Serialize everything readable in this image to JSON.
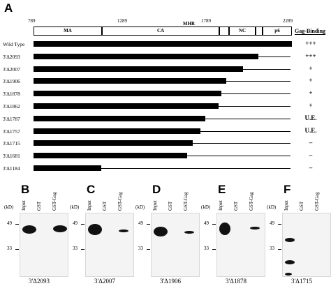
{
  "panelA": {
    "letter": "A",
    "positions": [
      "789",
      "1289",
      "MHR",
      "1789",
      "2289"
    ],
    "domains": [
      "MA",
      "CA",
      "NC",
      "p6"
    ],
    "gag_binding_header": "Gag-Binding",
    "rows": [
      {
        "label": "Wild Type",
        "binding": "+++",
        "end": 2289
      },
      {
        "label": "3'Δ2093",
        "binding": "+++",
        "end": 2093
      },
      {
        "label": "3'Δ2007",
        "binding": "+",
        "end": 2007
      },
      {
        "label": "3'Δ1906",
        "binding": "+",
        "end": 1906
      },
      {
        "label": "3'Δ1878",
        "binding": "+",
        "end": 1878
      },
      {
        "label": "3'Δ1862",
        "binding": "+",
        "end": 1862
      },
      {
        "label": "3'Δ1787",
        "binding": "U.E.",
        "end": 1787
      },
      {
        "label": "3'Δ1757",
        "binding": "U.E.",
        "end": 1757
      },
      {
        "label": "3'Δ1715",
        "binding": "–",
        "end": 1715
      },
      {
        "label": "3'Δ1681",
        "binding": "–",
        "end": 1681
      },
      {
        "label": "3'Δ1184",
        "binding": "–",
        "end": 1184
      }
    ]
  },
  "blots": [
    {
      "letter": "B",
      "caption": "3'Δ2093",
      "lanes": [
        "Input",
        "GST",
        "GST-Gag"
      ],
      "kd": "(kD)",
      "mw": [
        "49",
        "33"
      ]
    },
    {
      "letter": "C",
      "caption": "3'Δ2007",
      "lanes": [
        "Input",
        "GST",
        "GST-Gag"
      ],
      "kd": "(kD)",
      "mw": [
        "49",
        "33"
      ]
    },
    {
      "letter": "D",
      "caption": "3'Δ1906",
      "lanes": [
        "Input",
        "GST",
        "GST-Gag"
      ],
      "kd": "(kD)",
      "mw": [
        "49",
        "33"
      ]
    },
    {
      "letter": "E",
      "caption": "3'Δ1878",
      "lanes": [
        "Input",
        "GST",
        "GST-Gag"
      ],
      "kd": "(kD)",
      "mw": [
        "49",
        "33"
      ]
    },
    {
      "letter": "F",
      "caption": "3'Δ1715",
      "lanes": [
        "Input",
        "GST",
        "GST-Gag"
      ],
      "kd": "(kD)",
      "mw": [
        "49",
        "33"
      ]
    }
  ]
}
